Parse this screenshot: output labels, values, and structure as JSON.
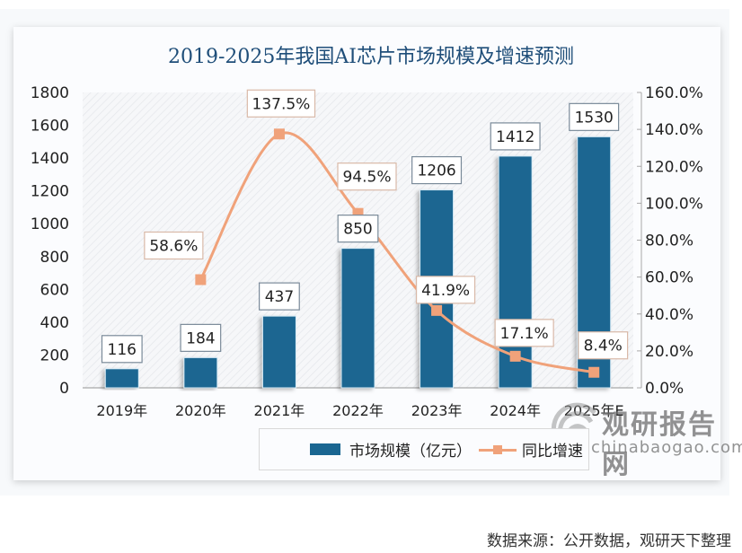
{
  "chart_data": {
    "type": "bar",
    "title": "2019-2025年我国AI芯片市场规模及增速预测",
    "categories": [
      "2019年",
      "2020年",
      "2021年",
      "2022年",
      "2023年",
      "2024年",
      "2025年E"
    ],
    "series": [
      {
        "name": "市场规模（亿元）",
        "type": "bar",
        "axis": "left",
        "color": "#1a6691",
        "values": [
          116,
          184,
          437,
          850,
          1206,
          1412,
          1530
        ],
        "labels": [
          "116",
          "184",
          "437",
          "850",
          "1206",
          "1412",
          "1530"
        ]
      },
      {
        "name": "同比增速",
        "type": "line",
        "axis": "right",
        "color": "#f0a27a",
        "smooth": true,
        "values": [
          null,
          58.6,
          137.5,
          94.5,
          41.9,
          17.1,
          8.4
        ],
        "labels": [
          null,
          "58.6%",
          "137.5%",
          "94.5%",
          "41.9%",
          "17.1%",
          "8.4%"
        ]
      }
    ],
    "y_left": {
      "label": "",
      "range": [
        0,
        1800
      ],
      "ticks": [
        0,
        200,
        400,
        600,
        800,
        1000,
        1200,
        1400,
        1600,
        1800
      ],
      "tick_labels": [
        "0",
        "200",
        "400",
        "600",
        "800",
        "1000",
        "1200",
        "1400",
        "1600",
        "1800"
      ]
    },
    "y_right": {
      "label": "",
      "range": [
        0,
        160
      ],
      "ticks": [
        0,
        20,
        40,
        60,
        80,
        100,
        120,
        140,
        160
      ],
      "tick_labels": [
        "0.0%",
        "20.0%",
        "40.0%",
        "60.0%",
        "80.0%",
        "100.0%",
        "120.0%",
        "140.0%",
        "160.0%"
      ]
    },
    "xlabel": "",
    "grid": false,
    "legend": {
      "position": "bottom",
      "entries": [
        "市场规模（亿元）",
        "同比增速"
      ]
    }
  },
  "watermark": {
    "cn": "观研报告网",
    "en": "chinabaogao.com"
  },
  "source": "数据来源：公开数据，观研天下整理"
}
